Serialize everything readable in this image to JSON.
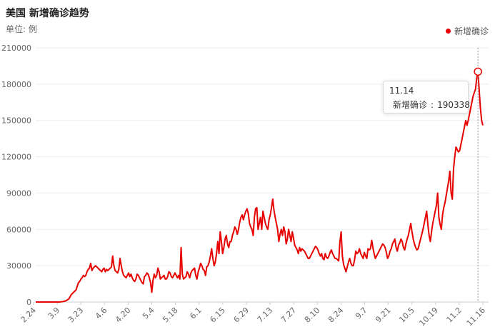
{
  "chart_data": {
    "type": "line",
    "title": "美国 新增确诊趋势",
    "subtitle": "单位: 例",
    "legend": [
      "新增确诊"
    ],
    "legend_position": "top-right",
    "ylim": [
      0,
      210000
    ],
    "y_ticks": [
      "0",
      "30000",
      "60000",
      "90000",
      "120000",
      "150000",
      "180000",
      "210000"
    ],
    "x_ticks": [
      "2.24",
      "3.9",
      "3.23",
      "4.6",
      "4.20",
      "5.4",
      "5.18",
      "6.1",
      "6.15",
      "6.29",
      "7.13",
      "7.27",
      "8.10",
      "8.24",
      "9.7",
      "9.21",
      "10.5",
      "10.19",
      "11.2",
      "11.16"
    ],
    "grid": "horizontal",
    "line_color": "#e60000",
    "series": [
      {
        "name": "新增确诊",
        "values": [
          0,
          0,
          0,
          0,
          0,
          0,
          0,
          0,
          0,
          0,
          0,
          0,
          0,
          0,
          0,
          0,
          0,
          0,
          0,
          0,
          100,
          200,
          300,
          500,
          800,
          1200,
          1800,
          2500,
          4000,
          6000,
          7000,
          8000,
          9000,
          10000,
          13000,
          16000,
          17000,
          19000,
          20000,
          22000,
          21000,
          22000,
          25000,
          27000,
          28000,
          32000,
          26000,
          28000,
          29000,
          30000,
          29000,
          28000,
          27000,
          26000,
          25000,
          27000,
          28000,
          25000,
          27000,
          26000,
          27000,
          28000,
          29000,
          38000,
          30000,
          26000,
          25000,
          24000,
          27000,
          36000,
          30000,
          25000,
          22000,
          21000,
          20000,
          22000,
          24000,
          21000,
          23000,
          20000,
          18000,
          17000,
          19000,
          23000,
          22000,
          20000,
          18000,
          16000,
          15000,
          21000,
          22000,
          24000,
          23000,
          20000,
          16000,
          8000,
          18000,
          23000,
          20000,
          22000,
          28000,
          25000,
          19000,
          20000,
          21000,
          22000,
          19000,
          19000,
          21000,
          25000,
          24000,
          21000,
          20000,
          22000,
          24000,
          22000,
          20000,
          22000,
          19000,
          45000,
          23000,
          19000,
          20000,
          21000,
          25000,
          23000,
          20000,
          24000,
          26000,
          27000,
          28000,
          22000,
          19000,
          25000,
          28000,
          32000,
          30000,
          27000,
          26000,
          22000,
          29000,
          30000,
          33000,
          38000,
          44000,
          36000,
          30000,
          33000,
          40000,
          50000,
          40000,
          58000,
          50000,
          40000,
          45000,
          52000,
          55000,
          48000,
          45000,
          50000,
          50000,
          55000,
          58000,
          62000,
          60000,
          56000,
          60000,
          66000,
          70000,
          72000,
          68000,
          72000,
          75000,
          77000,
          73000,
          65000,
          62000,
          60000,
          55000,
          70000,
          77000,
          78000,
          60000,
          65000,
          70000,
          60000,
          75000,
          70000,
          65000,
          62000,
          60000,
          68000,
          72000,
          78000,
          85000,
          76000,
          70000,
          65000,
          60000,
          50000,
          56000,
          60000,
          55000,
          62000,
          58000,
          48000,
          52000,
          60000,
          55000,
          50000,
          58000,
          53000,
          47000,
          45000,
          43000,
          40000,
          45000,
          42000,
          44000,
          43000,
          42000,
          40000,
          38000,
          36000,
          36000,
          38000,
          40000,
          42000,
          44000,
          46000,
          45000,
          43000,
          40000,
          38000,
          40000,
          36000,
          35000,
          40000,
          37000,
          36000,
          38000,
          41000,
          43000,
          40000,
          38000,
          36000,
          36000,
          35000,
          34000,
          50000,
          58000,
          38000,
          31000,
          28000,
          25000,
          29000,
          33000,
          36000,
          32000,
          30000,
          30000,
          35000,
          42000,
          40000,
          41000,
          44000,
          40000,
          38000,
          36000,
          41000,
          38000,
          36000,
          44000,
          43000,
          44000,
          51000,
          45000,
          40000,
          36000,
          38000,
          40000,
          42000,
          44000,
          46000,
          48000,
          47000,
          45000,
          41000,
          36000,
          38000,
          42000,
          44000,
          48000,
          50000,
          52000,
          45000,
          42000,
          47000,
          49000,
          52000,
          50000,
          45000,
          43000,
          48000,
          52000,
          55000,
          60000,
          65000,
          58000,
          52000,
          48000,
          45000,
          43000,
          44000,
          48000,
          52000,
          56000,
          60000,
          65000,
          70000,
          75000,
          64000,
          55000,
          50000,
          58000,
          65000,
          70000,
          75000,
          80000,
          90000,
          70000,
          64000,
          60000,
          72000,
          78000,
          82000,
          88000,
          94000,
          100000,
          108000,
          90000,
          85000,
          110000,
          120000,
          128000,
          126000,
          124000,
          125000,
          130000,
          135000,
          140000,
          145000,
          150000,
          146000,
          150000,
          155000,
          160000,
          165000,
          170000,
          173000,
          176000,
          185000,
          190338,
          175000,
          160000,
          150000,
          146000
        ]
      }
    ],
    "highlight": {
      "label": "11.14",
      "series": "新增确诊",
      "value": "190338"
    }
  }
}
